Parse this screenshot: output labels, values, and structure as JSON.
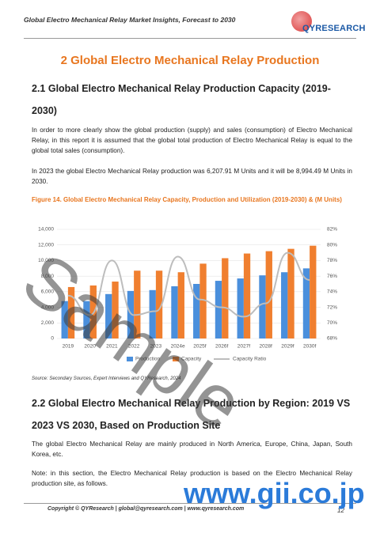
{
  "header": {
    "title": "Global Electro Mechanical Relay Market Insights, Forecast to 2030",
    "logo": "QYRESEARCH"
  },
  "chapter_title": "2  Global Electro Mechanical Relay Production",
  "section_1": {
    "heading": "2.1  Global Electro Mechanical Relay Production Capacity (2019-2030)",
    "paragraphs": [
      "In order to more clearly show the global production (supply) and sales (consumption) of Electro Mechanical Relay, in this report it is assumed that the global total production of Electro Mechanical Relay is equal to the global total sales (consumption).",
      "In 2023 the global Electro Mechanical Relay production was 6,207.91 M Units and it will be 8,994.49 M Units in 2030."
    ],
    "figure_caption": "Figure 14.  Global Electro Mechanical Relay Capacity, Production and Utilization (2019-2030) & (M Units)",
    "source": "Source: Secondary Sources, Expert Interviews and QYResearch, 2024"
  },
  "chart_data": {
    "type": "bar-line",
    "categories": [
      "2019",
      "2020",
      "2021",
      "2022",
      "2023",
      "2024e",
      "2025f",
      "2026f",
      "2027f",
      "2028f",
      "2029f",
      "2030f"
    ],
    "series": [
      {
        "name": "Production",
        "color": "#4a8fdc",
        "type": "bar",
        "values": [
          4800,
          4800,
          5700,
          6100,
          6207.91,
          6700,
          7000,
          7400,
          7700,
          8100,
          8500,
          8994.49
        ]
      },
      {
        "name": "Capacity",
        "color": "#f07f2f",
        "type": "bar",
        "values": [
          6600,
          6800,
          7300,
          8700,
          8700,
          8500,
          9600,
          10300,
          10900,
          11200,
          11500,
          11900
        ]
      },
      {
        "name": "Capacity Ratio",
        "color": "#bdbdbd",
        "type": "line",
        "axis": "y2",
        "values": [
          73.5,
          71,
          78,
          71,
          71.5,
          78.5,
          73,
          72,
          70.8,
          72.5,
          79,
          75.5
        ]
      }
    ],
    "ylim": [
      0,
      14000
    ],
    "yticks": [
      0,
      {
        "value": 2000,
        "label": "2,000"
      },
      {
        "value": 4000,
        "label": "4,000"
      },
      {
        "value": 6000,
        "label": "6,000"
      },
      {
        "value": 8000,
        "label": "8,000"
      },
      {
        "value": 10000,
        "label": "10,000"
      },
      {
        "value": 12000,
        "label": "12,000"
      },
      {
        "value": 14000,
        "label": "14,000"
      }
    ],
    "y2lim": [
      68,
      82
    ],
    "y2ticks": [
      {
        "value": 68,
        "label": "68%"
      },
      {
        "value": 70,
        "label": "70%"
      },
      {
        "value": 72,
        "label": "72%"
      },
      {
        "value": 74,
        "label": "74%"
      },
      {
        "value": 76,
        "label": "76%"
      },
      {
        "value": 78,
        "label": "78%"
      },
      {
        "value": 80,
        "label": "80%"
      },
      {
        "value": 82,
        "label": "82%"
      }
    ],
    "grid": true,
    "legend": "bottom"
  },
  "section_2": {
    "heading": "2.2  Global Electro Mechanical Relay Production by Region: 2019 VS 2023 VS 2030, Based on Production Site",
    "paragraphs": [
      "The global Electro Mechanical Relay are mainly produced in North America, Europe, China, Japan, South Korea, etc.",
      "Note: in this section, the Electro Mechanical Relay production is based on the Electro Mechanical Relay production site, as follows."
    ]
  },
  "footer": {
    "text": "Copyright © QYResearch | global@qyresearch.com | www.qyresearch.com",
    "page": "12"
  },
  "watermarks": [
    "Sample",
    "www.gii.co.jp"
  ]
}
